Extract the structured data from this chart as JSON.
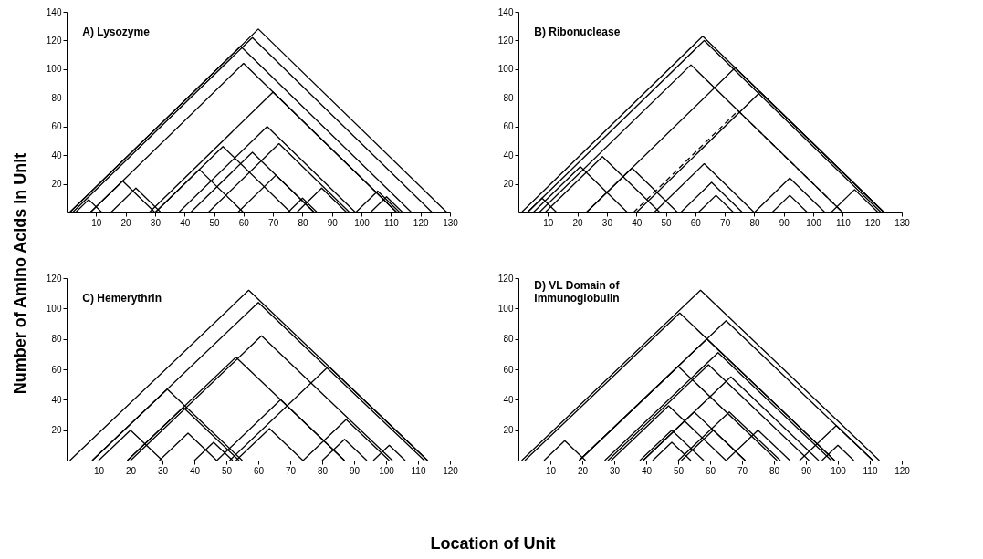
{
  "chart_data": [
    {
      "type": "line",
      "title": "A) Lysozyme",
      "ylabel": "Number of Amino Acids in Unit",
      "xlim": [
        0,
        130
      ],
      "ylim": [
        0,
        140
      ],
      "xticks": [
        10,
        20,
        30,
        40,
        50,
        60,
        70,
        80,
        90,
        100,
        110,
        120,
        130
      ],
      "yticks": [
        20,
        40,
        60,
        80,
        100,
        120,
        140
      ],
      "line_style": "solid",
      "series": [
        {
          "color": "#000000",
          "x": [
            1,
            65,
            129
          ],
          "values": [
            0,
            128,
            0
          ]
        },
        {
          "color": "#000000",
          "x": [
            2,
            63,
            124
          ],
          "values": [
            0,
            122,
            0
          ]
        },
        {
          "color": "#000000",
          "x": [
            1,
            59,
            117
          ],
          "values": [
            0,
            116,
            0
          ]
        },
        {
          "color": "#000000",
          "x": [
            8,
            60,
            112
          ],
          "values": [
            0,
            104,
            0
          ]
        },
        {
          "color": "#000000",
          "x": [
            28,
            70,
            112
          ],
          "values": [
            0,
            84,
            0
          ]
        },
        {
          "color": "#000000",
          "x": [
            38,
            68,
            98
          ],
          "values": [
            0,
            60,
            0
          ]
        },
        {
          "color": "#000000",
          "x": [
            48,
            72,
            96
          ],
          "values": [
            0,
            48,
            0
          ]
        },
        {
          "color": "#000000",
          "x": [
            42,
            63,
            84
          ],
          "values": [
            0,
            42,
            0
          ]
        },
        {
          "color": "#000000",
          "x": [
            30,
            53,
            76
          ],
          "values": [
            0,
            46,
            0
          ]
        },
        {
          "color": "#000000",
          "x": [
            30,
            45,
            60
          ],
          "values": [
            0,
            30,
            0
          ]
        },
        {
          "color": "#000000",
          "x": [
            58,
            71,
            84
          ],
          "values": [
            0,
            26,
            0
          ]
        },
        {
          "color": "#000000",
          "x": [
            8,
            19,
            30
          ],
          "values": [
            0,
            22,
            0
          ]
        },
        {
          "color": "#000000",
          "x": [
            3,
            7.5,
            12
          ],
          "values": [
            0,
            9,
            0
          ]
        },
        {
          "color": "#000000",
          "x": [
            15,
            23.5,
            32
          ],
          "values": [
            0,
            17,
            0
          ]
        },
        {
          "color": "#000000",
          "x": [
            78,
            86.5,
            95
          ],
          "values": [
            0,
            17,
            0
          ]
        },
        {
          "color": "#000000",
          "x": [
            98,
            105.5,
            113
          ],
          "values": [
            0,
            15,
            0
          ]
        },
        {
          "color": "#000000",
          "x": [
            103,
            108.5,
            114
          ],
          "values": [
            0,
            11,
            0
          ]
        },
        {
          "color": "#000000",
          "x": [
            75,
            80,
            85
          ],
          "values": [
            0,
            10,
            0
          ]
        }
      ]
    },
    {
      "type": "line",
      "title": "B) Ribonuclease",
      "xlim": [
        0,
        130
      ],
      "ylim": [
        0,
        140
      ],
      "xticks": [
        10,
        20,
        30,
        40,
        50,
        60,
        70,
        80,
        90,
        100,
        110,
        120,
        130
      ],
      "yticks": [
        20,
        40,
        60,
        80,
        100,
        120,
        140
      ],
      "line_style": "solid",
      "series": [
        {
          "color": "#000000",
          "x": [
            1,
            62.5,
            124
          ],
          "values": [
            0,
            123,
            0
          ]
        },
        {
          "color": "#000000",
          "x": [
            3,
            63,
            123
          ],
          "values": [
            0,
            120,
            0
          ]
        },
        {
          "color": "#000000",
          "x": [
            7,
            58.5,
            110
          ],
          "values": [
            0,
            103,
            0
          ]
        },
        {
          "color": "#000000",
          "x": [
            23,
            73.5,
            124
          ],
          "values": [
            0,
            101,
            0
          ]
        },
        {
          "color": "#000000",
          "x": [
            40,
            82,
            124
          ],
          "values": [
            0,
            84,
            0
          ]
        },
        {
          "color": "#000000",
          "x": [
            39,
            74.5,
            110
          ],
          "values": [
            0,
            71,
            0
          ],
          "line_style": "dashed"
        },
        {
          "color": "#000000",
          "x": [
            46,
            63,
            80
          ],
          "values": [
            0,
            34,
            0
          ]
        },
        {
          "color": "#000000",
          "x": [
            55,
            65.5,
            76
          ],
          "values": [
            0,
            21,
            0
          ]
        },
        {
          "color": "#000000",
          "x": [
            61,
            67,
            73
          ],
          "values": [
            0,
            12,
            0
          ]
        },
        {
          "color": "#000000",
          "x": [
            80,
            92,
            104
          ],
          "values": [
            0,
            24,
            0
          ]
        },
        {
          "color": "#000000",
          "x": [
            86,
            92,
            98
          ],
          "values": [
            0,
            12,
            0
          ]
        },
        {
          "color": "#000000",
          "x": [
            106,
            114,
            122
          ],
          "values": [
            0,
            16,
            0
          ]
        },
        {
          "color": "#000000",
          "x": [
            9,
            28.5,
            48
          ],
          "values": [
            0,
            39,
            0
          ]
        },
        {
          "color": "#000000",
          "x": [
            23,
            38.5,
            54
          ],
          "values": [
            0,
            31,
            0
          ]
        },
        {
          "color": "#000000",
          "x": [
            5,
            21,
            37
          ],
          "values": [
            0,
            32,
            0
          ]
        },
        {
          "color": "#000000",
          "x": [
            3,
            8,
            13
          ],
          "values": [
            0,
            10,
            0
          ]
        }
      ]
    },
    {
      "type": "line",
      "title": "C) Hemerythrin",
      "xlabel": "Location of Unit",
      "xlim": [
        0,
        120
      ],
      "ylim": [
        0,
        120
      ],
      "xticks": [
        10,
        20,
        30,
        40,
        50,
        60,
        70,
        80,
        90,
        100,
        110,
        120
      ],
      "yticks": [
        20,
        40,
        60,
        80,
        100,
        120
      ],
      "line_style": "solid",
      "series": [
        {
          "color": "#000000",
          "x": [
            1,
            57,
            113
          ],
          "values": [
            0,
            112,
            0
          ]
        },
        {
          "color": "#000000",
          "x": [
            8,
            60,
            112
          ],
          "values": [
            0,
            104,
            0
          ]
        },
        {
          "color": "#000000",
          "x": [
            20,
            61,
            102
          ],
          "values": [
            0,
            82,
            0
          ]
        },
        {
          "color": "#000000",
          "x": [
            19,
            53,
            87
          ],
          "values": [
            0,
            68,
            0
          ]
        },
        {
          "color": "#000000",
          "x": [
            51,
            82,
            113
          ],
          "values": [
            0,
            62,
            0
          ]
        },
        {
          "color": "#000000",
          "x": [
            8,
            31.5,
            55
          ],
          "values": [
            0,
            47,
            0
          ]
        },
        {
          "color": "#000000",
          "x": [
            19,
            36.5,
            54
          ],
          "values": [
            0,
            35,
            0
          ]
        },
        {
          "color": "#000000",
          "x": [
            47,
            67,
            87
          ],
          "values": [
            0,
            40,
            0
          ]
        },
        {
          "color": "#000000",
          "x": [
            74,
            87.5,
            101
          ],
          "values": [
            0,
            27,
            0
          ]
        },
        {
          "color": "#000000",
          "x": [
            10,
            20,
            30
          ],
          "values": [
            0,
            20,
            0
          ]
        },
        {
          "color": "#000000",
          "x": [
            29,
            38,
            47
          ],
          "values": [
            0,
            18,
            0
          ]
        },
        {
          "color": "#000000",
          "x": [
            53,
            63.5,
            74
          ],
          "values": [
            0,
            21,
            0
          ]
        },
        {
          "color": "#000000",
          "x": [
            80,
            87,
            94
          ],
          "values": [
            0,
            14,
            0
          ]
        },
        {
          "color": "#000000",
          "x": [
            96,
            101,
            106
          ],
          "values": [
            0,
            10,
            0
          ]
        },
        {
          "color": "#000000",
          "x": [
            40,
            46,
            52
          ],
          "values": [
            0,
            12,
            0
          ]
        }
      ]
    },
    {
      "type": "line",
      "title": "D) VL Domain of\nImmunoglobulin",
      "xlim": [
        0,
        120
      ],
      "ylim": [
        0,
        120
      ],
      "xticks": [
        10,
        20,
        30,
        40,
        50,
        60,
        70,
        80,
        90,
        100,
        110,
        120
      ],
      "yticks": [
        20,
        40,
        60,
        80,
        100,
        120
      ],
      "line_style": "solid",
      "series": [
        {
          "color": "#000000",
          "x": [
            1,
            57,
            113
          ],
          "values": [
            0,
            112,
            0
          ]
        },
        {
          "color": "#000000",
          "x": [
            2,
            50.5,
            99
          ],
          "values": [
            0,
            97,
            0
          ]
        },
        {
          "color": "#000000",
          "x": [
            19,
            65,
            111
          ],
          "values": [
            0,
            92,
            0
          ]
        },
        {
          "color": "#000000",
          "x": [
            19,
            59,
            99
          ],
          "values": [
            0,
            80,
            0
          ]
        },
        {
          "color": "#000000",
          "x": [
            27,
            62.5,
            98
          ],
          "values": [
            0,
            71,
            0
          ]
        },
        {
          "color": "#000000",
          "x": [
            19,
            50,
            81
          ],
          "values": [
            0,
            62,
            0
          ]
        },
        {
          "color": "#000000",
          "x": [
            28,
            59.5,
            91
          ],
          "values": [
            0,
            63,
            0
          ]
        },
        {
          "color": "#000000",
          "x": [
            39,
            66.5,
            94
          ],
          "values": [
            0,
            55,
            0
          ]
        },
        {
          "color": "#000000",
          "x": [
            29,
            47,
            65
          ],
          "values": [
            0,
            36,
            0
          ]
        },
        {
          "color": "#000000",
          "x": [
            39,
            55,
            71
          ],
          "values": [
            0,
            32,
            0
          ]
        },
        {
          "color": "#000000",
          "x": [
            38,
            48,
            58
          ],
          "values": [
            0,
            20,
            0
          ]
        },
        {
          "color": "#000000",
          "x": [
            42,
            48,
            54
          ],
          "values": [
            0,
            12,
            0
          ]
        },
        {
          "color": "#000000",
          "x": [
            51,
            61,
            71
          ],
          "values": [
            0,
            20,
            0
          ]
        },
        {
          "color": "#000000",
          "x": [
            50,
            66,
            82
          ],
          "values": [
            0,
            32,
            0
          ]
        },
        {
          "color": "#000000",
          "x": [
            8,
            14.5,
            21
          ],
          "values": [
            0,
            13,
            0
          ]
        },
        {
          "color": "#000000",
          "x": [
            65,
            75,
            85
          ],
          "values": [
            0,
            20,
            0
          ]
        },
        {
          "color": "#000000",
          "x": [
            88,
            99.5,
            111
          ],
          "values": [
            0,
            23,
            0
          ]
        },
        {
          "color": "#000000",
          "x": [
            95,
            100,
            105
          ],
          "values": [
            0,
            10,
            0
          ]
        }
      ]
    }
  ]
}
